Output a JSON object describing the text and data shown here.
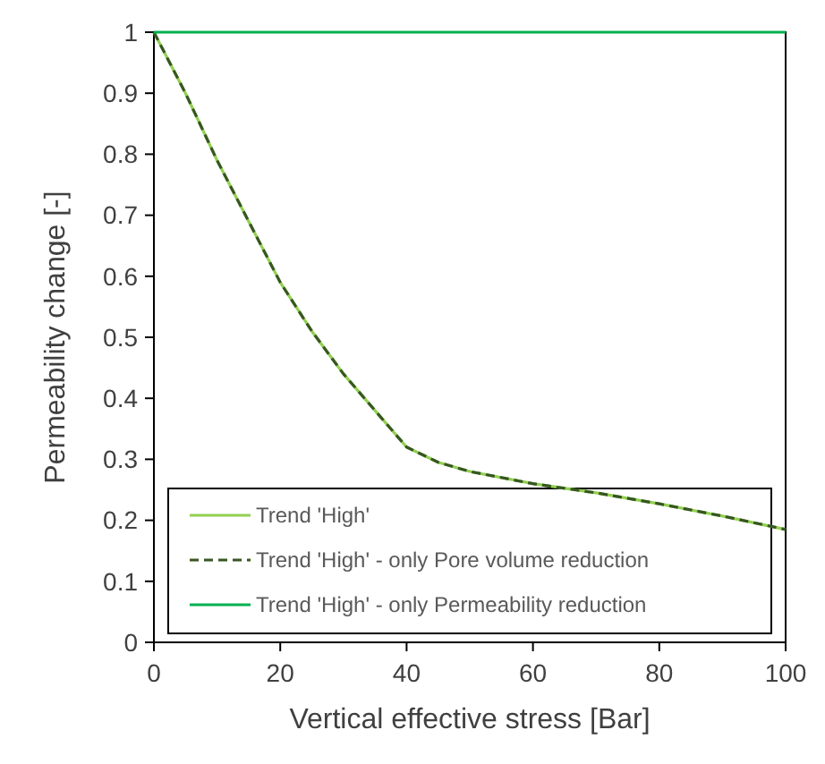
{
  "chart_data": {
    "type": "line",
    "xlabel": "Vertical effective stress [Bar]",
    "ylabel": "Permeability change [-]",
    "x": [
      0,
      5,
      10,
      15,
      20,
      25,
      30,
      35,
      40,
      45,
      50,
      60,
      70,
      80,
      90,
      100
    ],
    "series": [
      {
        "name": "Trend 'High'",
        "color": "#92d050",
        "values": [
          1,
          0.9,
          0.79,
          0.69,
          0.59,
          0.51,
          0.44,
          0.38,
          0.32,
          0.295,
          0.28,
          0.26,
          0.245,
          0.227,
          0.207,
          0.185
        ]
      },
      {
        "name": "Trend 'High' - only Pore volume reduction",
        "color": "#375623",
        "line_style": "dashed",
        "values": [
          1,
          0.9,
          0.79,
          0.69,
          0.59,
          0.51,
          0.44,
          0.38,
          0.32,
          0.295,
          0.28,
          0.26,
          0.245,
          0.227,
          0.207,
          0.185
        ]
      },
      {
        "name": "Trend 'High' - only Permeability reduction",
        "color": "#00b050",
        "values": [
          1,
          1,
          1,
          1,
          1,
          1,
          1,
          1,
          1,
          1,
          1,
          1,
          1,
          1,
          1,
          1
        ]
      }
    ],
    "xlim": [
      0,
      100
    ],
    "xticks": [
      0,
      20,
      40,
      60,
      80,
      100
    ],
    "ylim": [
      0,
      1
    ],
    "yticks": [
      0,
      0.1,
      0.2,
      0.3,
      0.4,
      0.5,
      0.6,
      0.7,
      0.8,
      0.9,
      1
    ],
    "legend": "bottom",
    "marker": "none",
    "line_style": "solid",
    "grid": false
  }
}
